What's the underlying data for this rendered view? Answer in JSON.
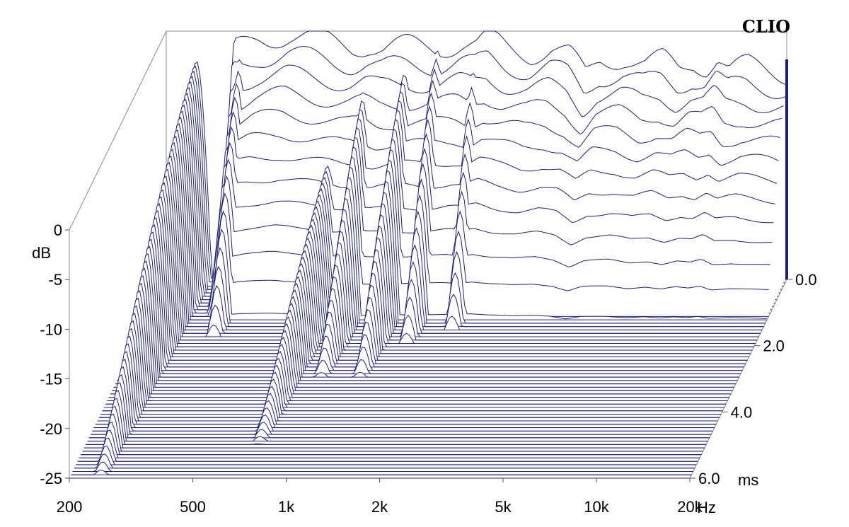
{
  "brand": "CLIO",
  "chart_data": {
    "type": "waterfall",
    "title": "",
    "x_axis": {
      "unit": "Hz",
      "scale": "log",
      "range": [
        200,
        20000
      ],
      "ticks": [
        {
          "value": 200,
          "label": "200"
        },
        {
          "value": 500,
          "label": "500"
        },
        {
          "value": 1000,
          "label": "1k"
        },
        {
          "value": 2000,
          "label": "2k"
        },
        {
          "value": 5000,
          "label": "5k"
        },
        {
          "value": 10000,
          "label": "10k"
        },
        {
          "value": 20000,
          "label": "20k"
        }
      ]
    },
    "y_axis": {
      "unit": "dB",
      "range": [
        -25,
        0
      ],
      "ticks": [
        {
          "value": 0,
          "label": "0"
        },
        {
          "value": -5,
          "label": "-5"
        },
        {
          "value": -10,
          "label": "-10"
        },
        {
          "value": -15,
          "label": "-15"
        },
        {
          "value": -20,
          "label": "-20"
        },
        {
          "value": -25,
          "label": "-25"
        }
      ]
    },
    "z_axis": {
      "unit": "ms",
      "range": [
        0,
        6
      ],
      "ticks": [
        {
          "value": 0,
          "label": "0.0"
        },
        {
          "value": 2,
          "label": "2.0"
        },
        {
          "value": 4,
          "label": "4.0"
        },
        {
          "value": 6,
          "label": "6.0"
        }
      ]
    },
    "line_color": "#1f1f7a",
    "slice_count": 60,
    "initial_response": {
      "freq_hz": [
        200,
        260,
        300,
        330,
        400,
        500,
        600,
        700,
        800,
        900,
        1000,
        1200,
        1500,
        1800,
        2000,
        2200,
        2500,
        3000,
        3500,
        4000,
        4500,
        5000,
        6000,
        7000,
        8000,
        9000,
        10000,
        11000,
        12000,
        13000,
        15000,
        17000,
        20000
      ],
      "db": [
        -25,
        -25,
        -25,
        -2,
        -0.8,
        -0.3,
        -0.8,
        -1.2,
        -1.5,
        -1.3,
        -1.8,
        -1.5,
        -1.6,
        -1.2,
        -1.5,
        -0.8,
        -1.6,
        -2.2,
        -1.8,
        -2.5,
        -4.5,
        -2.8,
        -2.6,
        -3.5,
        -2.9,
        -3.8,
        -3.0,
        -3.5,
        -2.6,
        -4.0,
        -3.5,
        -3.8,
        -4.2
      ]
    },
    "resonances": [
      {
        "freq_hz": 250,
        "peak_db": -3,
        "duration_ms": 6.0
      },
      {
        "freq_hz": 350,
        "peak_db": -2,
        "duration_ms": 1.8
      },
      {
        "freq_hz": 720,
        "peak_db": -10,
        "duration_ms": 5.0
      },
      {
        "freq_hz": 900,
        "peak_db": -4,
        "duration_ms": 3.0
      },
      {
        "freq_hz": 1200,
        "peak_db": -3,
        "duration_ms": 3.0
      },
      {
        "freq_hz": 1500,
        "peak_db": -2,
        "duration_ms": 2.0
      },
      {
        "freq_hz": 2000,
        "peak_db": -2,
        "duration_ms": 1.6
      },
      {
        "freq_hz": 3000,
        "peak_db": -6,
        "duration_ms": 1.0
      },
      {
        "freq_hz": 4500,
        "peak_db": -6,
        "duration_ms": 0.4
      },
      {
        "freq_hz": 6500,
        "peak_db": -8,
        "duration_ms": 0.3
      },
      {
        "freq_hz": 13000,
        "peak_db": -8,
        "duration_ms": 0.4
      }
    ]
  }
}
